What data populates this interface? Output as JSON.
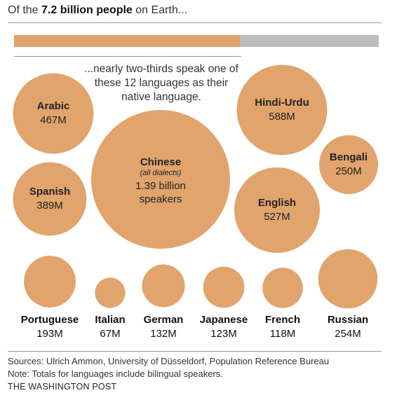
{
  "header": {
    "prefix": "Of the ",
    "emphasis": "7.2 billion people",
    "suffix": " on Earth..."
  },
  "share_bar": {
    "fraction": 0.62,
    "fill_color": "#e0a46c",
    "track_color": "#bdbdbd"
  },
  "intro_text": "...nearly two-thirds speak one of these 12 languages as their native language.",
  "chart_data": {
    "type": "bubble",
    "value_unit": "speakers (millions)",
    "bubble_color": "#e0a46c",
    "items": [
      {
        "name": "Chinese",
        "note": "(all dialects)",
        "value": 1390,
        "label_lines": [
          "1.39 billion",
          "speakers"
        ]
      },
      {
        "name": "Hindi-Urdu",
        "value": 588,
        "label": "588M"
      },
      {
        "name": "English",
        "value": 527,
        "label": "527M"
      },
      {
        "name": "Arabic",
        "value": 467,
        "label": "467M"
      },
      {
        "name": "Spanish",
        "value": 389,
        "label": "389M"
      },
      {
        "name": "Russian",
        "value": 254,
        "label": "254M"
      },
      {
        "name": "Bengali",
        "value": 250,
        "label": "250M"
      },
      {
        "name": "Portuguese",
        "value": 193,
        "label": "193M"
      },
      {
        "name": "German",
        "value": 132,
        "label": "132M"
      },
      {
        "name": "Japanese",
        "value": 123,
        "label": "123M"
      },
      {
        "name": "French",
        "value": 118,
        "label": "118M"
      },
      {
        "name": "Italian",
        "value": 67,
        "label": "67M"
      }
    ]
  },
  "footer": {
    "sources": "Sources: Ulrich Ammon, University of Düsseldorf, Population Reference Bureau",
    "note": "Note: Totals for languages include bilingual speakers.",
    "publisher": "THE WASHINGTON POST"
  }
}
